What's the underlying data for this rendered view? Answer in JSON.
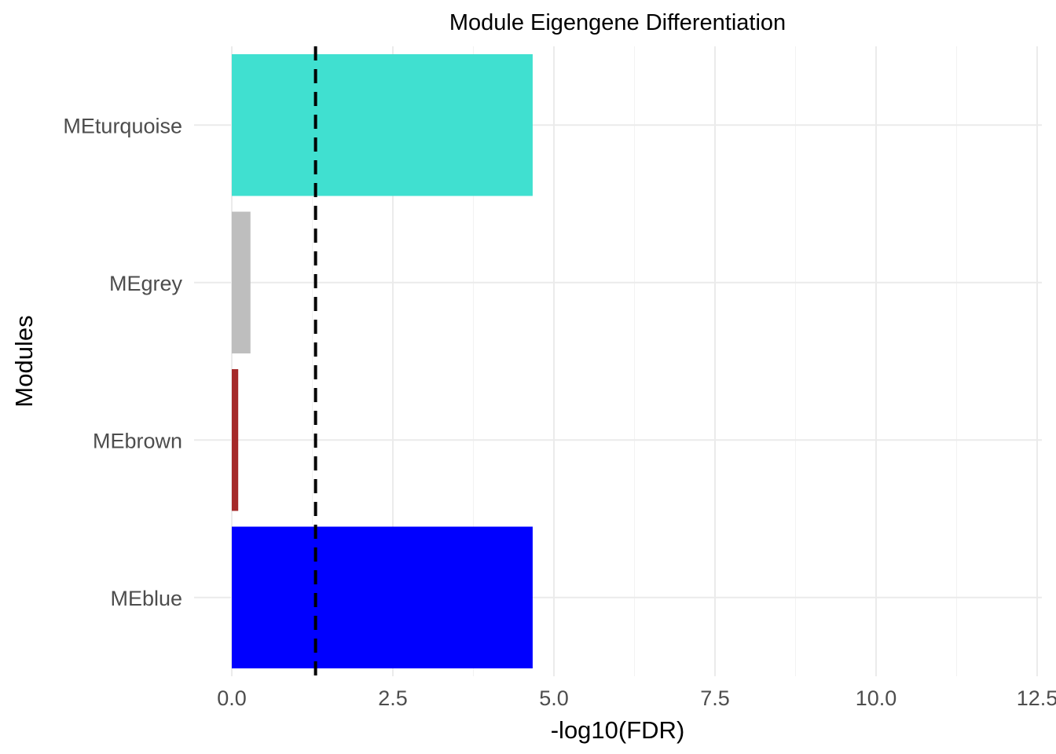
{
  "chart_data": {
    "type": "bar",
    "orientation": "horizontal",
    "title": "Module Eigengene Differentiation",
    "xlabel": "-log10(FDR)",
    "ylabel": "Modules",
    "categories": [
      "MEblue",
      "MEbrown",
      "MEgrey",
      "MEturquoise"
    ],
    "values": [
      4.67,
      0.1,
      0.29,
      4.67
    ],
    "colors": [
      "#0000FF",
      "#A52A2A",
      "#BEBEBE",
      "#40E0D0"
    ],
    "xlim": [
      0,
      12.5
    ],
    "x_ticks": [
      "0.0",
      "2.5",
      "5.0",
      "7.5",
      "10.0",
      "12.5"
    ],
    "threshold_line": {
      "x": 1.3,
      "style": "dashed",
      "color": "#000000"
    },
    "grid": true,
    "legend": "none"
  }
}
